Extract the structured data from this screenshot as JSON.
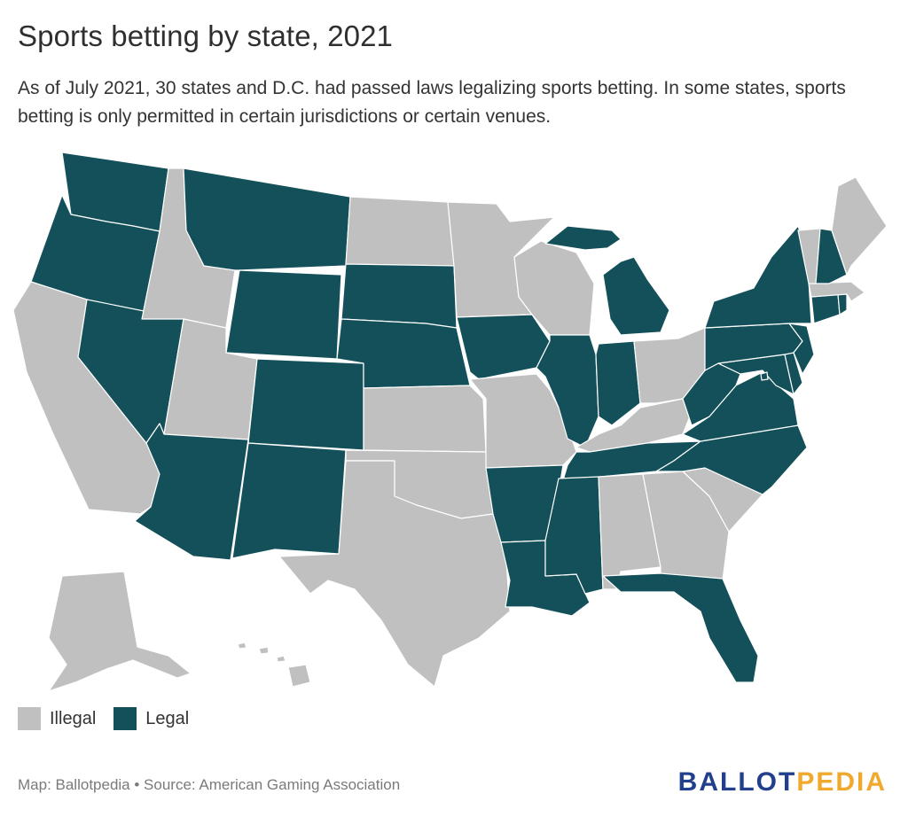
{
  "header": {
    "title": "Sports betting by state, 2021",
    "subtitle": "As of July 2021, 30 states and D.C. had passed laws legalizing sports betting. In some states, sports betting is only permitted in certain jurisdictions or certain venues."
  },
  "colors": {
    "legal": "#13505a",
    "illegal": "#c0c0c0"
  },
  "legend": [
    {
      "label": "Illegal",
      "status": "illegal"
    },
    {
      "label": "Legal",
      "status": "legal"
    }
  ],
  "states": [
    {
      "id": "WA",
      "status": "legal"
    },
    {
      "id": "OR",
      "status": "legal"
    },
    {
      "id": "CA",
      "status": "illegal"
    },
    {
      "id": "NV",
      "status": "legal"
    },
    {
      "id": "ID",
      "status": "illegal"
    },
    {
      "id": "MT",
      "status": "legal"
    },
    {
      "id": "WY",
      "status": "legal"
    },
    {
      "id": "UT",
      "status": "illegal"
    },
    {
      "id": "AZ",
      "status": "legal"
    },
    {
      "id": "CO",
      "status": "legal"
    },
    {
      "id": "NM",
      "status": "legal"
    },
    {
      "id": "ND",
      "status": "illegal"
    },
    {
      "id": "SD",
      "status": "legal"
    },
    {
      "id": "NE",
      "status": "legal"
    },
    {
      "id": "KS",
      "status": "illegal"
    },
    {
      "id": "OK",
      "status": "illegal"
    },
    {
      "id": "TX",
      "status": "illegal"
    },
    {
      "id": "MN",
      "status": "illegal"
    },
    {
      "id": "IA",
      "status": "legal"
    },
    {
      "id": "MO",
      "status": "illegal"
    },
    {
      "id": "AR",
      "status": "legal"
    },
    {
      "id": "LA",
      "status": "legal"
    },
    {
      "id": "WI",
      "status": "illegal"
    },
    {
      "id": "IL",
      "status": "legal"
    },
    {
      "id": "MI",
      "status": "legal"
    },
    {
      "id": "IN",
      "status": "legal"
    },
    {
      "id": "OH",
      "status": "illegal"
    },
    {
      "id": "KY",
      "status": "illegal"
    },
    {
      "id": "TN",
      "status": "legal"
    },
    {
      "id": "MS",
      "status": "legal"
    },
    {
      "id": "AL",
      "status": "illegal"
    },
    {
      "id": "GA",
      "status": "illegal"
    },
    {
      "id": "FL",
      "status": "legal"
    },
    {
      "id": "SC",
      "status": "illegal"
    },
    {
      "id": "NC",
      "status": "legal"
    },
    {
      "id": "VA",
      "status": "legal"
    },
    {
      "id": "WV",
      "status": "legal"
    },
    {
      "id": "MD",
      "status": "legal"
    },
    {
      "id": "DE",
      "status": "legal"
    },
    {
      "id": "DC",
      "status": "legal"
    },
    {
      "id": "PA",
      "status": "legal"
    },
    {
      "id": "NJ",
      "status": "legal"
    },
    {
      "id": "NY",
      "status": "legal"
    },
    {
      "id": "CT",
      "status": "legal"
    },
    {
      "id": "RI",
      "status": "legal"
    },
    {
      "id": "MA",
      "status": "illegal"
    },
    {
      "id": "VT",
      "status": "illegal"
    },
    {
      "id": "NH",
      "status": "legal"
    },
    {
      "id": "ME",
      "status": "illegal"
    },
    {
      "id": "AK",
      "status": "illegal"
    },
    {
      "id": "HI",
      "status": "illegal"
    }
  ],
  "footer": {
    "credit": "Map: Ballotpedia • Source: American Gaming Association",
    "logo_part1": "BALLOT",
    "logo_part2": "PEDIA"
  }
}
